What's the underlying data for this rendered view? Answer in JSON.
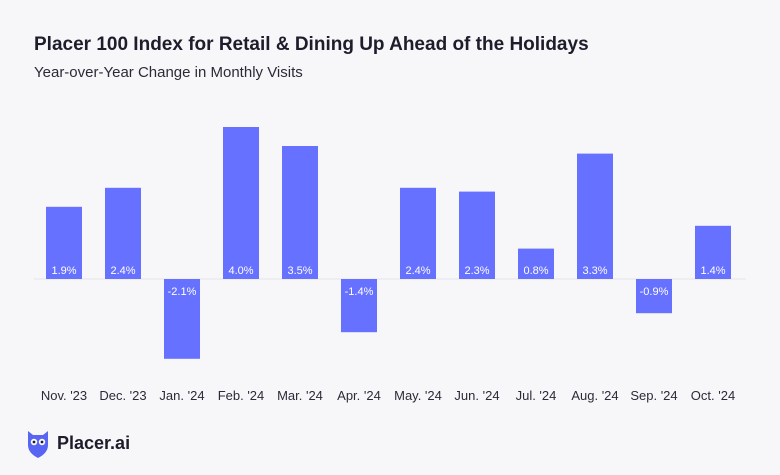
{
  "header": {
    "title": "Placer 100 Index for Retail & Dining Up Ahead of the Holidays",
    "subtitle": "Year-over-Year Change in Monthly Visits"
  },
  "brand": {
    "name": "Placer.ai",
    "logo_icon": "owl-logo-icon",
    "logo_color": "#5865f2"
  },
  "chart_data": {
    "type": "bar",
    "title": "Placer 100 Index for Retail & Dining Up Ahead of the Holidays",
    "subtitle": "Year-over-Year Change in Monthly Visits",
    "xlabel": "",
    "ylabel": "",
    "categories": [
      "Nov. '23",
      "Dec. '23",
      "Jan. '24",
      "Feb. '24",
      "Mar. '24",
      "Apr. '24",
      "May. '24",
      "Jun. '24",
      "Jul. '24",
      "Aug. '24",
      "Sep. '24",
      "Oct. '24"
    ],
    "values": [
      1.9,
      2.4,
      -2.1,
      4.0,
      3.5,
      -1.4,
      2.4,
      2.3,
      0.8,
      3.3,
      -0.9,
      1.4
    ],
    "value_labels": [
      "1.9%",
      "2.4%",
      "-2.1%",
      "4.0%",
      "3.5%",
      "-1.4%",
      "2.4%",
      "2.3%",
      "0.8%",
      "3.3%",
      "-0.9%",
      "1.4%"
    ],
    "unit": "%",
    "ylim": [
      -2.1,
      4.0
    ],
    "grid": false,
    "legend": "none",
    "bar_color": "#6671ff"
  }
}
